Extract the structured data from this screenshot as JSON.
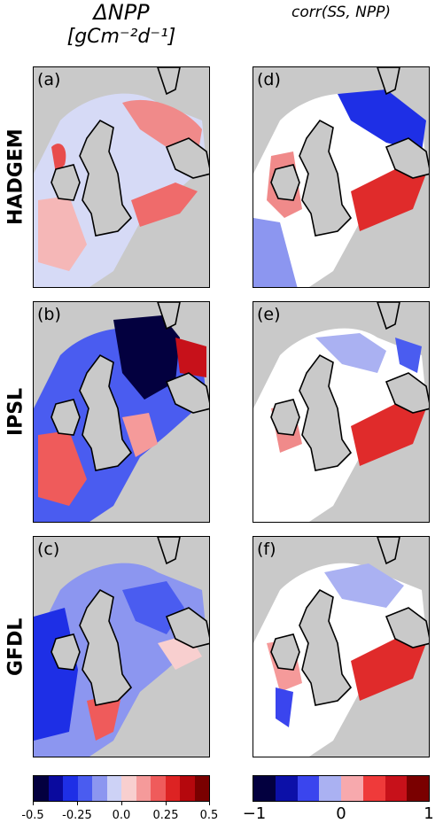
{
  "titles": {
    "left_line1": "ΔNPP",
    "left_line2": "[gCm⁻²d⁻¹]",
    "right": "corr(SS, NPP)"
  },
  "rows": [
    {
      "label": "HADGEM",
      "left_panel": "(a)",
      "right_panel": "(d)"
    },
    {
      "label": "IPSL",
      "left_panel": "(b)",
      "right_panel": "(e)"
    },
    {
      "label": "GFDL",
      "left_panel": "(c)",
      "right_panel": "(f)"
    }
  ],
  "colorbar_left": {
    "colors": [
      "#03003f",
      "#0a0a9e",
      "#1e2fe6",
      "#4a5cf0",
      "#8c96f0",
      "#cdd2f6",
      "#f8cfcf",
      "#f59a9a",
      "#ef5b5b",
      "#dd2323",
      "#b5080d",
      "#7a0000"
    ],
    "ticks": [
      "-0.5",
      "-0.25",
      "0.0",
      "0.25",
      "0.5"
    ]
  },
  "colorbar_right": {
    "colors": [
      "#03003f",
      "#0c10a8",
      "#3a45ee",
      "#aab1f2",
      "#f7a9ad",
      "#ef3a3a",
      "#c7111a",
      "#7a0000"
    ],
    "ticks": [
      "−1",
      "0",
      "1"
    ]
  },
  "colors": {
    "land": "#c9c9c9",
    "coast": "#000000"
  }
}
